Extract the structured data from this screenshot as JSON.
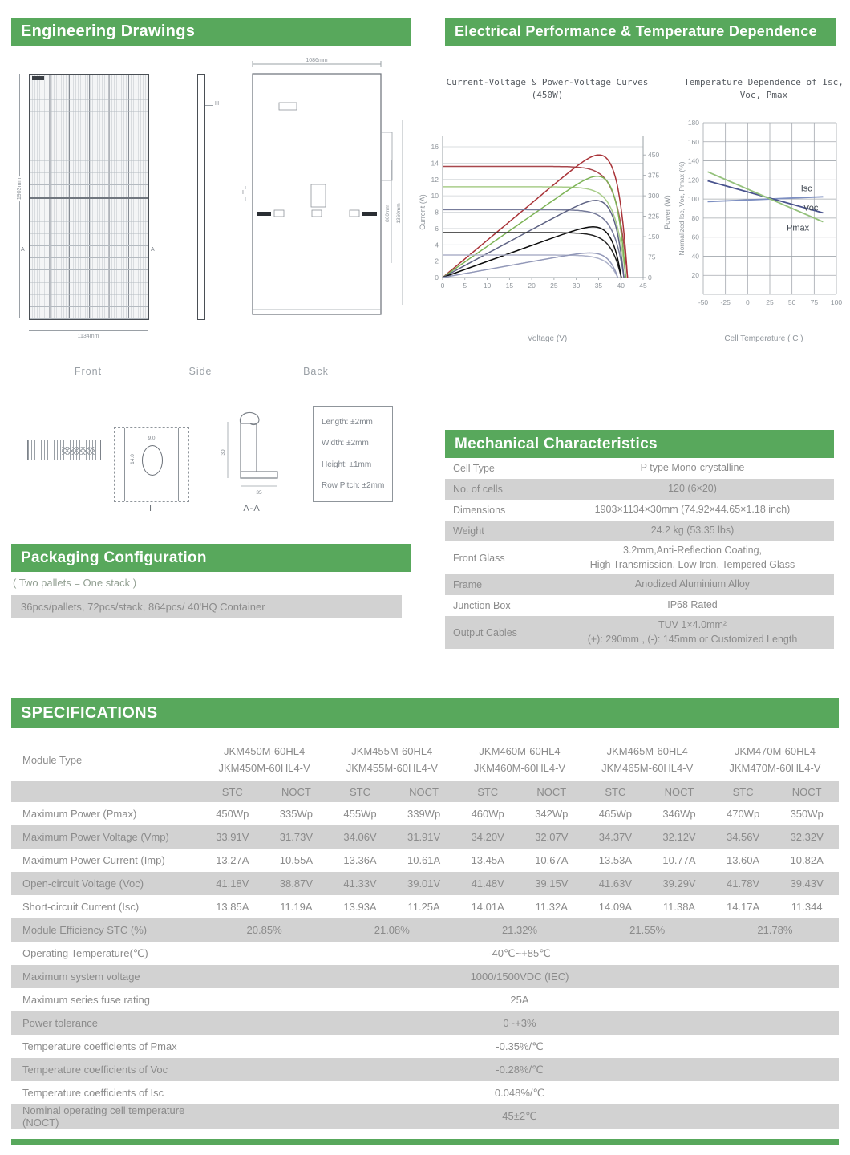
{
  "colors": {
    "accent_green": "#58a85c",
    "band_gray": "#d2d2d2",
    "text_gray": "#8b8b8b"
  },
  "engineering": {
    "header": "Engineering Drawings",
    "views": {
      "front": "Front",
      "side": "Side",
      "back": "Back"
    },
    "front_dims": {
      "height": "1903mm",
      "width": "1134mm",
      "section_marker": "A"
    },
    "side_marker": "H",
    "back_dims": {
      "top": "1086mm",
      "inner": "860mm",
      "outer": "1360mm",
      "marker": "I"
    },
    "detail_i": {
      "label": "I",
      "hole_width": "9.0",
      "hole_height": "14.0"
    },
    "section_aa": {
      "label": "A-A",
      "height": "30",
      "width": "35"
    },
    "tolerances": [
      "Length: ±2mm",
      "Width: ±2mm",
      "Height: ±1mm",
      "Row Pitch: ±2mm"
    ]
  },
  "electrical": {
    "header": "Electrical Performance & Temperature Dependence"
  },
  "chart_data": [
    {
      "type": "line",
      "title": "Current-Voltage & Power-Voltage Curves (450W)",
      "xlabel": "Voltage (V)",
      "ylabel_left": "Current (A)",
      "ylabel_right": "Power (W)",
      "xlim": [
        0,
        45
      ],
      "xtick_step": 5,
      "ylim_left": [
        0,
        16
      ],
      "ytick_step_left": 2,
      "ylim_right": [
        0,
        480
      ],
      "right_tick_labels": [
        0,
        75,
        150,
        225,
        300,
        375,
        450
      ],
      "grid": true,
      "series": [
        {
          "isc": 13.6,
          "voc": 41.5,
          "pmax_w": 450,
          "color_iv": "#a8474c",
          "color_pv": "#a93338"
        },
        {
          "isc": 11.1,
          "voc": 41.1,
          "pmax_w": 372,
          "color_iv": "#a9cd8a",
          "color_pv": "#7cb355"
        },
        {
          "isc": 8.3,
          "voc": 40.7,
          "pmax_w": 283,
          "color_iv": "#777c9b",
          "color_pv": "#5e6384"
        },
        {
          "isc": 5.5,
          "voc": 40.1,
          "pmax_w": 186,
          "color_iv": "#242424",
          "color_pv": "#0c0c0c"
        },
        {
          "isc": 2.75,
          "voc": 39.3,
          "pmax_w": 90,
          "color_iv": "#adb2ca",
          "color_pv": "#9298b8"
        }
      ]
    },
    {
      "type": "line",
      "title": "Temperature Dependence of Isc, Voc, Pmax",
      "xlabel": "Cell Temperature ( C )",
      "ylabel": "Normalized Isc, Voc, Pmax (%)",
      "xlim": [
        -50,
        100
      ],
      "xtick_step": 25,
      "ylim": [
        0,
        180
      ],
      "ytick_labels": [
        20,
        40,
        60,
        80,
        100,
        120,
        140,
        160,
        180
      ],
      "grid": true,
      "series": [
        {
          "name": "Isc",
          "points": [
            [
              -45,
              97.2
            ],
            [
              85,
              102.4
            ]
          ],
          "color": "#7d8fc1",
          "label_pos": [
            60,
            108
          ]
        },
        {
          "name": "Voc",
          "points": [
            [
              -45,
              119
            ],
            [
              85,
              85.5
            ]
          ],
          "color": "#4a548e",
          "label_pos": [
            63,
            88
          ]
        },
        {
          "name": "Pmax",
          "points": [
            [
              -45,
              128.5
            ],
            [
              85,
              76
            ]
          ],
          "color": "#94c17c",
          "label_pos": [
            44,
            67
          ]
        }
      ]
    }
  ],
  "mechanical": {
    "header": "Mechanical Characteristics",
    "rows": [
      {
        "label": "Cell  Type",
        "lines": [
          "P type Mono-crystalline"
        ]
      },
      {
        "label": "No. of cells",
        "lines": [
          "120 (6×20)"
        ]
      },
      {
        "label": "Dimensions",
        "lines": [
          "1903×1134×30mm (74.92×44.65×1.18 inch)"
        ]
      },
      {
        "label": "Weight",
        "lines": [
          "24.2 kg (53.35 lbs)"
        ]
      },
      {
        "label": "Front Glass",
        "lines": [
          "3.2mm,Anti-Reflection Coating,",
          "High Transmission, Low Iron, Tempered Glass"
        ]
      },
      {
        "label": "Frame",
        "lines": [
          "Anodized Aluminium Alloy"
        ]
      },
      {
        "label": "Junction Box",
        "lines": [
          "IP68 Rated"
        ]
      },
      {
        "label": "Output Cables",
        "lines": [
          "TUV  1×4.0mm²",
          "(+): 290mm , (-): 145mm or Customized Length"
        ]
      }
    ]
  },
  "packaging": {
    "header": "Packaging Configuration",
    "note": "( Two pallets = One stack )",
    "line": "36pcs/pallets, 72pcs/stack, 864pcs/ 40'HQ Container"
  },
  "specifications": {
    "header": "SPECIFICATIONS",
    "module_type_label": "Module Type",
    "modules": [
      [
        "JKM450M-60HL4",
        "JKM450M-60HL4-V"
      ],
      [
        "JKM455M-60HL4",
        "JKM455M-60HL4-V"
      ],
      [
        "JKM460M-60HL4",
        "JKM460M-60HL4-V"
      ],
      [
        "JKM465M-60HL4",
        "JKM465M-60HL4-V"
      ],
      [
        "JKM470M-60HL4",
        "JKM470M-60HL4-V"
      ]
    ],
    "condition_labels": [
      "STC",
      "NOCT"
    ],
    "rows": [
      {
        "label": "Maximum Power (Pmax)",
        "values": [
          "450Wp",
          "335Wp",
          "455Wp",
          "339Wp",
          "460Wp",
          "342Wp",
          "465Wp",
          "346Wp",
          "470Wp",
          "350Wp"
        ]
      },
      {
        "label": "Maximum Power Voltage (Vmp)",
        "values": [
          "33.91V",
          "31.73V",
          "34.06V",
          "31.91V",
          "34.20V",
          "32.07V",
          "34.37V",
          "32.12V",
          "34.56V",
          "32.32V"
        ]
      },
      {
        "label": "Maximum Power Current (Imp)",
        "values": [
          "13.27A",
          "10.55A",
          "13.36A",
          "10.61A",
          "13.45A",
          "10.67A",
          "13.53A",
          "10.77A",
          "13.60A",
          "10.82A"
        ]
      },
      {
        "label": "Open-circuit Voltage (Voc)",
        "values": [
          "41.18V",
          "38.87V",
          "41.33V",
          "39.01V",
          "41.48V",
          "39.15V",
          "41.63V",
          "39.29V",
          "41.78V",
          "39.43V"
        ]
      },
      {
        "label": "Short-circuit Current (Isc)",
        "values": [
          "13.85A",
          "11.19A",
          "13.93A",
          "11.25A",
          "14.01A",
          "11.32A",
          "14.09A",
          "11.38A",
          "14.17A",
          "11.344"
        ]
      },
      {
        "label": "Module Efficiency STC (%)",
        "group_values": [
          "20.85%",
          "21.08%",
          "21.32%",
          "21.55%",
          "21.78%"
        ]
      },
      {
        "label": "Operating Temperature(℃)",
        "value": "-40℃~+85℃"
      },
      {
        "label": "Maximum system voltage",
        "value": "1000/1500VDC (IEC)"
      },
      {
        "label": "Maximum series fuse rating",
        "value": "25A"
      },
      {
        "label": "Power tolerance",
        "value": "0~+3%"
      },
      {
        "label": "Temperature coefficients of Pmax",
        "value": "-0.35%/℃"
      },
      {
        "label": "Temperature coefficients of Voc",
        "value": "-0.28%/℃"
      },
      {
        "label": "Temperature coefficients of Isc",
        "value": "0.048%/℃"
      },
      {
        "label": "Nominal operating cell temperature  (NOCT)",
        "value": "45±2℃"
      }
    ]
  }
}
